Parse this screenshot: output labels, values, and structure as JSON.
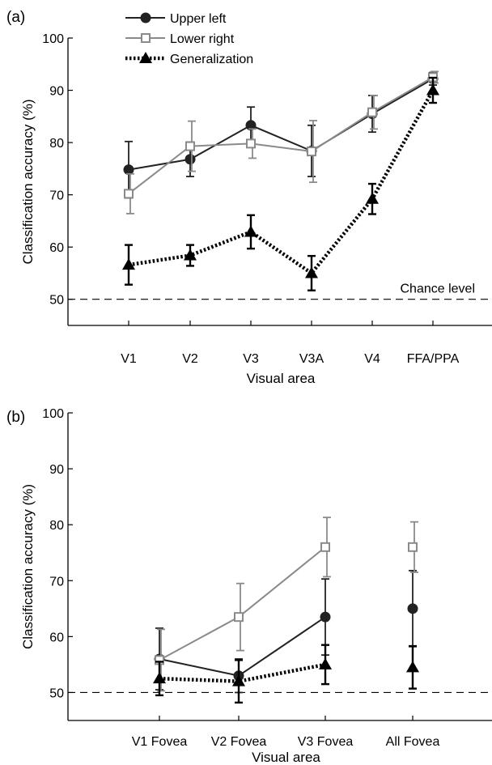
{
  "chart_data": [
    {
      "panel_label": "(a)",
      "type": "line",
      "xlabel": "Visual area",
      "ylabel": "Classification accuracy (%)",
      "categories": [
        "V1",
        "V2",
        "V3",
        "V3A",
        "V4",
        "FFA/PPA"
      ],
      "ylim": [
        45,
        100
      ],
      "yticks": [
        50,
        60,
        70,
        80,
        90,
        100
      ],
      "grid": false,
      "legend_position": "top-left",
      "reference_line": {
        "y": 50,
        "label": "Chance level"
      },
      "series": [
        {
          "name": "Upper left",
          "marker": "circle",
          "color": "#222222",
          "line": "solid",
          "values": [
            74.8,
            76.8,
            83.3,
            78.4,
            85.5,
            92.2
          ],
          "error": [
            5.4,
            3.3,
            3.5,
            4.9,
            3.5,
            1.2
          ]
        },
        {
          "name": "Lower right",
          "marker": "square",
          "color": "#8a8a8a",
          "line": "solid",
          "values": [
            70.2,
            79.3,
            79.8,
            78.3,
            85.8,
            92.5
          ],
          "error": [
            3.8,
            4.8,
            2.8,
            5.9,
            3.2,
            1.1
          ]
        },
        {
          "name": "Generalization",
          "marker": "triangle",
          "color": "#000000",
          "line": "dotted",
          "values": [
            56.6,
            58.4,
            62.9,
            55.0,
            69.2,
            90.0
          ],
          "error": [
            3.8,
            2.0,
            3.2,
            3.3,
            2.9,
            2.4
          ]
        }
      ]
    },
    {
      "panel_label": "(b)",
      "type": "line",
      "xlabel": "Visual area",
      "ylabel": "Classification accuracy (%)",
      "categories": [
        "V1 Fovea",
        "V2 Fovea",
        "V3 Fovea",
        "All Fovea"
      ],
      "ylim": [
        45,
        100
      ],
      "yticks": [
        50,
        60,
        70,
        80,
        90,
        100
      ],
      "grid": false,
      "reference_line": {
        "y": 50,
        "label": ""
      },
      "series": [
        {
          "name": "Upper left",
          "marker": "circle",
          "color": "#222222",
          "line": "solid",
          "connect_last": false,
          "values": [
            56.0,
            53.0,
            63.5,
            65.0
          ],
          "error": [
            5.5,
            3.0,
            6.8,
            6.8
          ]
        },
        {
          "name": "Lower right",
          "marker": "square",
          "color": "#8a8a8a",
          "line": "solid",
          "connect_last": false,
          "values": [
            55.8,
            63.5,
            76.0,
            76.0
          ],
          "error": [
            5.5,
            6.0,
            5.3,
            4.5
          ]
        },
        {
          "name": "Generalization",
          "marker": "triangle",
          "color": "#000000",
          "line": "dotted",
          "connect_last": false,
          "values": [
            52.5,
            52.0,
            55.0,
            54.5
          ],
          "error": [
            3.0,
            3.8,
            3.5,
            3.8
          ]
        }
      ]
    }
  ]
}
